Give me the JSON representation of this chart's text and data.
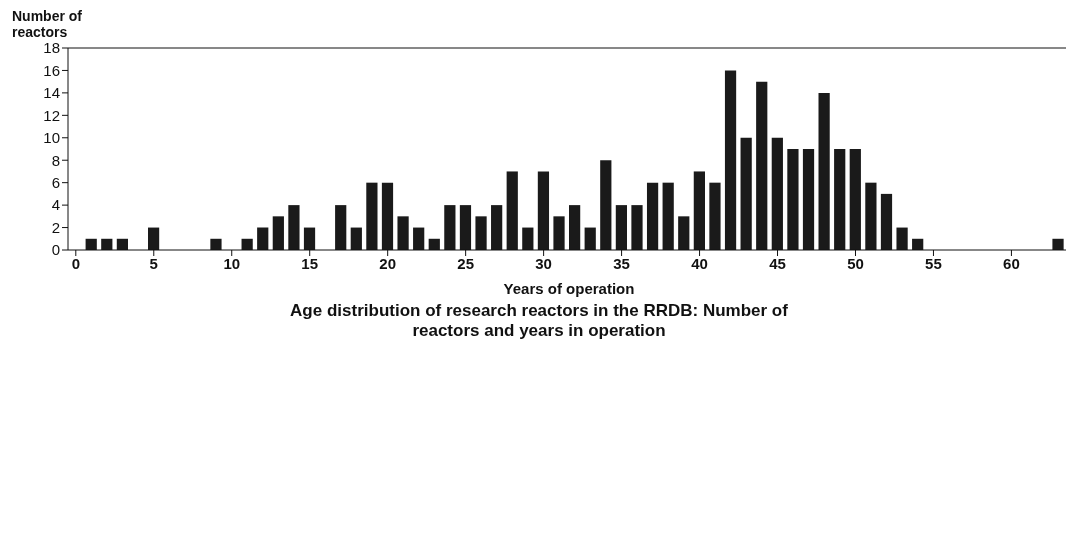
{
  "chart_data": {
    "type": "bar",
    "ylabel": "Number of reactors",
    "xlabel": "Years of operation",
    "annotations": [
      "Age distribution of research reactors in the RRDB: Number of reactors and years in operation"
    ],
    "x": [
      0,
      1,
      2,
      3,
      4,
      5,
      6,
      7,
      8,
      9,
      10,
      11,
      12,
      13,
      14,
      15,
      16,
      17,
      18,
      19,
      20,
      21,
      22,
      23,
      24,
      25,
      26,
      27,
      28,
      29,
      30,
      31,
      32,
      33,
      34,
      35,
      36,
      37,
      38,
      39,
      40,
      41,
      42,
      43,
      44,
      45,
      46,
      47,
      48,
      49,
      50,
      51,
      52,
      53,
      54,
      55,
      56,
      57,
      58,
      59,
      60,
      61,
      62,
      63
    ],
    "values": [
      0,
      1,
      1,
      1,
      0,
      2,
      0,
      0,
      0,
      1,
      0,
      1,
      2,
      3,
      4,
      2,
      0,
      4,
      2,
      6,
      6,
      3,
      2,
      1,
      4,
      4,
      3,
      4,
      7,
      2,
      7,
      3,
      4,
      2,
      8,
      4,
      4,
      6,
      6,
      3,
      7,
      6,
      16,
      10,
      15,
      10,
      9,
      9,
      14,
      9,
      9,
      6,
      5,
      2,
      1,
      0,
      0,
      0,
      0,
      0,
      0,
      0,
      0,
      1
    ],
    "color": "#1a1a1a",
    "xlim": [
      -0.5,
      63.5
    ],
    "xticks": [
      0,
      5,
      10,
      15,
      20,
      25,
      30,
      35,
      40,
      45,
      50,
      55,
      60
    ],
    "ylim": [
      0,
      18
    ],
    "yticks": [
      0,
      2,
      4,
      6,
      8,
      10,
      12,
      14,
      16,
      18
    ],
    "grid": false
  }
}
